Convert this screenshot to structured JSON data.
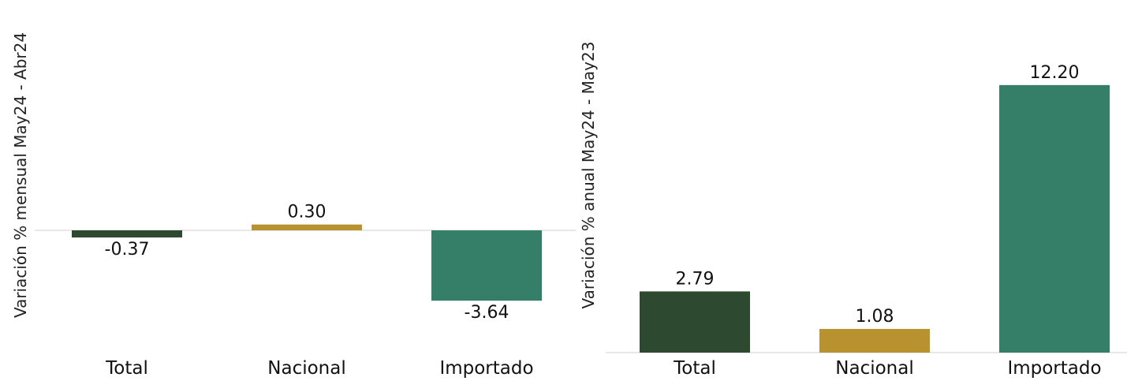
{
  "colors": {
    "total": "#2d4a30",
    "nacional": "#b8922e",
    "importado": "#357f68",
    "axis": "#d0d0d0"
  },
  "chart_data": [
    {
      "type": "bar",
      "ylabel": "Variación % mensual May24 - Abr24",
      "categories": [
        "Total",
        "Nacional",
        "Importado"
      ],
      "values": [
        -0.37,
        0.3,
        -3.64
      ],
      "value_labels": [
        "-0.37",
        "0.30",
        "-3.64"
      ],
      "ylim": [
        -6.4,
        11.6
      ],
      "grid": false,
      "legend": "none"
    },
    {
      "type": "bar",
      "ylabel": "Variación % anual May24 - May23",
      "categories": [
        "Total",
        "Nacional",
        "Importado"
      ],
      "values": [
        2.79,
        1.08,
        12.2
      ],
      "value_labels": [
        "2.79",
        "1.08",
        "12.20"
      ],
      "ylim": [
        0,
        13.5
      ],
      "grid": false,
      "legend": "none"
    }
  ]
}
